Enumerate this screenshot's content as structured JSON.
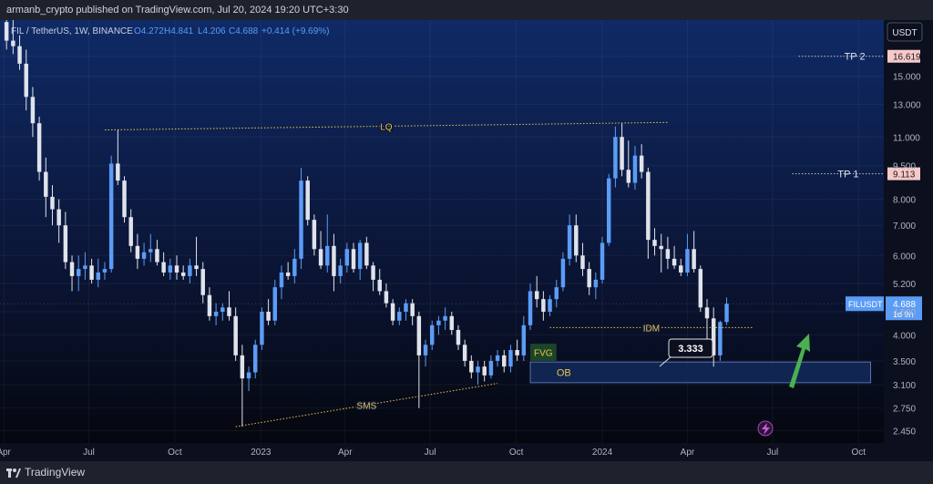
{
  "header": {
    "published_text": "armanb_crypto published on TradingView.com, Jul 20, 2024 19:20 UTC+3:30"
  },
  "legend": {
    "symbol": "FIL / TetherUS, 1W, BINANCE",
    "open": "O4.272",
    "high": "H4.841",
    "low": "L4.206",
    "close": "C4.688",
    "change": "+0.414 (+9.69%)"
  },
  "currency_button": "USDT",
  "footer": {
    "brand": "TradingView"
  },
  "colors": {
    "up": "#5b9cf6",
    "down": "#e0e3eb",
    "accent_yellow": "#e8c64a",
    "ob_fill": "#122a5c",
    "fvg_fill": "#1f4a2a",
    "arrow": "#4caf50",
    "tp_label_bg": "#f7c9c9"
  },
  "chart_data": {
    "type": "candlestick",
    "timeframe": "1W",
    "y_scale": "log",
    "ylim": [
      2.3,
      20.0
    ],
    "x_range": [
      "2022-03-28",
      "2024-10-28"
    ],
    "y_ticks": [
      "2.450",
      "2.750",
      "3.100",
      "3.500",
      "4.000",
      "4.500",
      "5.200",
      "6.000",
      "7.000",
      "8.000",
      "9.500",
      "11.000",
      "13.000",
      "15.000",
      "16.619"
    ],
    "x_ticks": [
      {
        "date": "2022-04-01",
        "label": "Apr"
      },
      {
        "date": "2022-07-01",
        "label": "Jul"
      },
      {
        "date": "2022-10-01",
        "label": "Oct"
      },
      {
        "date": "2023-01-01",
        "label": "2023"
      },
      {
        "date": "2023-04-01",
        "label": "Apr"
      },
      {
        "date": "2023-07-01",
        "label": "Jul"
      },
      {
        "date": "2023-10-01",
        "label": "Oct"
      },
      {
        "date": "2024-01-01",
        "label": "2024"
      },
      {
        "date": "2024-04-01",
        "label": "Apr"
      },
      {
        "date": "2024-07-01",
        "label": "Jul"
      },
      {
        "date": "2024-10-01",
        "label": "Oct"
      }
    ],
    "start_date": "2022-04-04",
    "candles_ohlc": [
      [
        19.8,
        20.0,
        17.2,
        18.0
      ],
      [
        18.0,
        20.0,
        16.8,
        17.5
      ],
      [
        17.5,
        18.5,
        15.5,
        16.0
      ],
      [
        16.0,
        17.2,
        12.6,
        13.5
      ],
      [
        13.5,
        14.2,
        11.0,
        11.8
      ],
      [
        11.8,
        12.2,
        8.8,
        9.2
      ],
      [
        9.2,
        9.9,
        7.3,
        8.1
      ],
      [
        8.1,
        8.6,
        7.0,
        7.6
      ],
      [
        7.6,
        8.0,
        6.4,
        7.0
      ],
      [
        7.0,
        7.5,
        5.6,
        5.8
      ],
      [
        5.8,
        6.0,
        5.0,
        5.4
      ],
      [
        5.4,
        6.0,
        5.0,
        5.6
      ],
      [
        5.6,
        6.1,
        5.3,
        5.7
      ],
      [
        5.7,
        5.9,
        5.2,
        5.3
      ],
      [
        5.3,
        5.9,
        5.1,
        5.5
      ],
      [
        5.5,
        5.8,
        5.3,
        5.6
      ],
      [
        5.6,
        10.0,
        5.5,
        9.6
      ],
      [
        9.6,
        11.4,
        8.6,
        8.8
      ],
      [
        8.8,
        9.0,
        7.1,
        7.3
      ],
      [
        7.3,
        7.6,
        6.1,
        6.3
      ],
      [
        6.3,
        6.7,
        5.6,
        5.9
      ],
      [
        5.9,
        6.4,
        5.7,
        6.1
      ],
      [
        6.1,
        6.7,
        5.8,
        6.2
      ],
      [
        6.2,
        6.5,
        5.7,
        5.8
      ],
      [
        5.8,
        6.1,
        5.4,
        5.5
      ],
      [
        5.5,
        5.9,
        5.3,
        5.7
      ],
      [
        5.7,
        6.0,
        5.3,
        5.5
      ],
      [
        5.5,
        5.7,
        5.3,
        5.4
      ],
      [
        5.4,
        5.9,
        5.2,
        5.7
      ],
      [
        5.7,
        6.6,
        5.4,
        5.6
      ],
      [
        5.6,
        5.8,
        4.7,
        4.9
      ],
      [
        4.9,
        5.1,
        4.3,
        4.4
      ],
      [
        4.4,
        4.7,
        4.2,
        4.5
      ],
      [
        4.5,
        4.7,
        4.3,
        4.6
      ],
      [
        4.6,
        5.0,
        4.3,
        4.4
      ],
      [
        4.4,
        4.6,
        3.5,
        3.6
      ],
      [
        3.6,
        3.8,
        2.5,
        3.2
      ],
      [
        3.2,
        3.4,
        3.0,
        3.3
      ],
      [
        3.3,
        3.9,
        3.2,
        3.8
      ],
      [
        3.8,
        4.6,
        3.7,
        4.5
      ],
      [
        4.5,
        4.8,
        4.2,
        4.3
      ],
      [
        4.3,
        5.3,
        4.2,
        5.1
      ],
      [
        5.1,
        5.7,
        4.8,
        5.5
      ],
      [
        5.5,
        5.8,
        5.3,
        5.4
      ],
      [
        5.4,
        6.2,
        5.2,
        5.9
      ],
      [
        5.9,
        9.4,
        5.6,
        8.8
      ],
      [
        8.8,
        9.0,
        7.0,
        7.2
      ],
      [
        7.2,
        7.4,
        6.0,
        6.2
      ],
      [
        6.2,
        6.8,
        5.6,
        5.7
      ],
      [
        5.7,
        7.4,
        5.5,
        6.3
      ],
      [
        6.3,
        6.7,
        5.0,
        5.4
      ],
      [
        5.4,
        5.9,
        5.2,
        5.7
      ],
      [
        5.7,
        6.4,
        5.5,
        6.2
      ],
      [
        6.2,
        6.4,
        5.5,
        5.6
      ],
      [
        5.6,
        6.5,
        5.3,
        6.4
      ],
      [
        6.4,
        6.6,
        5.6,
        5.7
      ],
      [
        5.7,
        5.8,
        5.0,
        5.3
      ],
      [
        5.3,
        5.6,
        4.9,
        5.0
      ],
      [
        5.0,
        5.2,
        4.6,
        4.7
      ],
      [
        4.7,
        4.8,
        4.2,
        4.3
      ],
      [
        4.3,
        4.6,
        4.2,
        4.5
      ],
      [
        4.5,
        4.8,
        4.3,
        4.7
      ],
      [
        4.7,
        4.8,
        4.2,
        4.4
      ],
      [
        4.4,
        4.5,
        2.75,
        3.6
      ],
      [
        3.6,
        3.9,
        3.4,
        3.8
      ],
      [
        3.8,
        4.3,
        3.7,
        4.2
      ],
      [
        4.2,
        4.4,
        4.0,
        4.3
      ],
      [
        4.3,
        4.6,
        4.1,
        4.4
      ],
      [
        4.4,
        4.5,
        4.0,
        4.1
      ],
      [
        4.1,
        4.2,
        3.7,
        3.8
      ],
      [
        3.8,
        3.9,
        3.4,
        3.5
      ],
      [
        3.5,
        3.6,
        3.2,
        3.3
      ],
      [
        3.3,
        3.5,
        3.1,
        3.4
      ],
      [
        3.4,
        3.5,
        3.15,
        3.25
      ],
      [
        3.25,
        3.6,
        3.2,
        3.5
      ],
      [
        3.5,
        3.7,
        3.4,
        3.6
      ],
      [
        3.6,
        3.7,
        3.3,
        3.4
      ],
      [
        3.4,
        3.8,
        3.3,
        3.7
      ],
      [
        3.7,
        3.9,
        3.5,
        3.6
      ],
      [
        3.6,
        4.4,
        3.5,
        4.2
      ],
      [
        4.2,
        5.2,
        4.1,
        5.0
      ],
      [
        5.0,
        5.4,
        4.6,
        4.8
      ],
      [
        4.8,
        5.0,
        4.3,
        4.5
      ],
      [
        4.5,
        4.9,
        4.4,
        4.8
      ],
      [
        4.8,
        5.3,
        4.6,
        5.1
      ],
      [
        5.1,
        6.1,
        5.0,
        5.9
      ],
      [
        5.9,
        7.4,
        5.7,
        7.0
      ],
      [
        7.0,
        7.4,
        5.8,
        6.0
      ],
      [
        6.0,
        6.4,
        5.4,
        5.6
      ],
      [
        5.6,
        5.8,
        4.9,
        5.1
      ],
      [
        5.1,
        5.5,
        4.8,
        5.3
      ],
      [
        5.3,
        6.6,
        5.2,
        6.4
      ],
      [
        6.4,
        9.1,
        6.3,
        8.9
      ],
      [
        8.9,
        11.6,
        8.5,
        11.0
      ],
      [
        11.0,
        11.8,
        9.0,
        9.3
      ],
      [
        9.3,
        10.8,
        8.5,
        8.7
      ],
      [
        8.7,
        10.5,
        8.4,
        10.0
      ],
      [
        10.0,
        10.6,
        8.9,
        9.2
      ],
      [
        9.2,
        9.4,
        5.9,
        6.5
      ],
      [
        6.5,
        6.9,
        6.0,
        6.3
      ],
      [
        6.3,
        6.7,
        5.5,
        6.2
      ],
      [
        6.2,
        6.6,
        5.6,
        5.9
      ],
      [
        5.9,
        6.3,
        5.6,
        5.7
      ],
      [
        5.7,
        5.9,
        5.4,
        5.5
      ],
      [
        5.5,
        6.7,
        5.4,
        6.2
      ],
      [
        6.2,
        6.8,
        5.5,
        5.6
      ],
      [
        5.6,
        5.7,
        4.5,
        4.6
      ],
      [
        4.6,
        4.8,
        3.9,
        4.35
      ],
      [
        4.35,
        4.6,
        3.4,
        3.6
      ],
      [
        3.6,
        4.3,
        3.5,
        4.27
      ],
      [
        4.27,
        4.841,
        4.206,
        4.688
      ]
    ],
    "annotations": [
      {
        "label": "LQ",
        "type": "dotted-line",
        "from": [
          "2022-07-18",
          11.4
        ],
        "to": [
          "2024-03-11",
          11.85
        ]
      },
      {
        "label": "SMS",
        "type": "dotted-line",
        "from": [
          "2022-12-05",
          2.5
        ],
        "to": [
          "2023-09-11",
          3.12
        ]
      },
      {
        "label": "IDM",
        "type": "dotted-line",
        "from": [
          "2023-11-06",
          4.15
        ],
        "to": [
          "2024-06-10",
          4.15
        ]
      },
      {
        "label": "TP 2",
        "type": "dotted-line",
        "from": [
          "2024-07-29",
          16.619
        ],
        "to": [
          "2024-10-28",
          16.619
        ],
        "value_label": "16.619"
      },
      {
        "label": "TP 1",
        "type": "dotted-line",
        "from": [
          "2024-07-22",
          9.113
        ],
        "to": [
          "2024-10-28",
          9.113
        ],
        "value_label": "9.113"
      },
      {
        "label": "OB",
        "type": "zone",
        "from": [
          "2023-10-16",
          3.48
        ],
        "to": [
          "2024-10-14",
          3.13
        ]
      },
      {
        "label": "FVG",
        "type": "zone",
        "from": [
          "2023-10-16",
          3.82
        ],
        "to": [
          "2023-11-13",
          3.5
        ]
      },
      {
        "label": "3.333",
        "type": "callout",
        "at": [
          "2024-04-29",
          3.33
        ]
      }
    ],
    "last_price": {
      "symbol": "FILUSDT",
      "value": "4.688",
      "countdown": "1d 9h"
    }
  }
}
